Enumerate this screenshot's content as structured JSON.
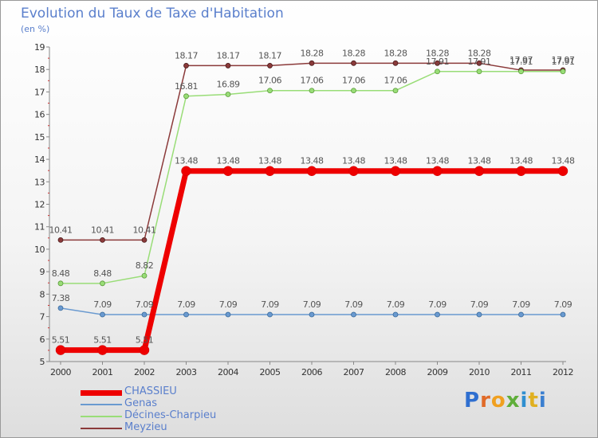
{
  "chart_data": {
    "type": "line",
    "title": "Evolution du Taux de Taxe d'Habitation",
    "ylabel": "(en %)",
    "xlabel": "",
    "categories": [
      "2000",
      "2001",
      "2002",
      "2003",
      "2004",
      "2005",
      "2006",
      "2007",
      "2008",
      "2009",
      "2010",
      "2011",
      "2012"
    ],
    "ylim": [
      5,
      19
    ],
    "yticks": [
      "5",
      "6",
      "7",
      "8",
      "9",
      "10",
      "11",
      "12",
      "13",
      "14",
      "15",
      "16",
      "17",
      "18",
      "19"
    ],
    "grid": false,
    "legend_position": "bottom-left",
    "series": [
      {
        "name": "CHASSIEU",
        "color": "#ee0000",
        "values": [
          5.51,
          5.51,
          5.51,
          13.48,
          13.48,
          13.48,
          13.48,
          13.48,
          13.48,
          13.48,
          13.48,
          13.48,
          13.48
        ],
        "labels": [
          "5.51",
          "5.51",
          "5.51",
          "13.48",
          "13.48",
          "13.48",
          "13.48",
          "13.48",
          "13.48",
          "13.48",
          "13.48",
          "13.48",
          "13.48"
        ]
      },
      {
        "name": "Genas",
        "color": "#6a9ad0",
        "values": [
          7.38,
          7.09,
          7.09,
          7.09,
          7.09,
          7.09,
          7.09,
          7.09,
          7.09,
          7.09,
          7.09,
          7.09,
          7.09
        ],
        "labels": [
          "7.38",
          "7.09",
          "7.09",
          "7.09",
          "7.09",
          "7.09",
          "7.09",
          "7.09",
          "7.09",
          "7.09",
          "7.09",
          "7.09",
          "7.09"
        ]
      },
      {
        "name": "Décines-Charpieu",
        "color": "#99dd77",
        "values": [
          8.48,
          8.48,
          8.82,
          16.81,
          16.89,
          17.06,
          17.06,
          17.06,
          17.06,
          17.91,
          17.91,
          17.91,
          17.91
        ],
        "labels": [
          "8.48",
          "8.48",
          "8.82",
          "16.81",
          "16.89",
          "17.06",
          "17.06",
          "17.06",
          "17.06",
          "17.91",
          "17.91",
          "17.91",
          "17.91"
        ]
      },
      {
        "name": "Meyzieu",
        "color": "#8b3a3a",
        "values": [
          10.41,
          10.41,
          10.41,
          18.17,
          18.17,
          18.17,
          18.28,
          18.28,
          18.28,
          18.28,
          18.28,
          17.97,
          17.97
        ],
        "labels": [
          "10.41",
          "10.41",
          "10.41",
          "18.17",
          "18.17",
          "18.17",
          "18.28",
          "18.28",
          "18.28",
          "18.28",
          "18.28",
          "17.97",
          "17.97"
        ]
      }
    ]
  },
  "branding": {
    "logo_letters": [
      "P",
      "r",
      "o",
      "x",
      "i",
      "t",
      "i"
    ]
  }
}
